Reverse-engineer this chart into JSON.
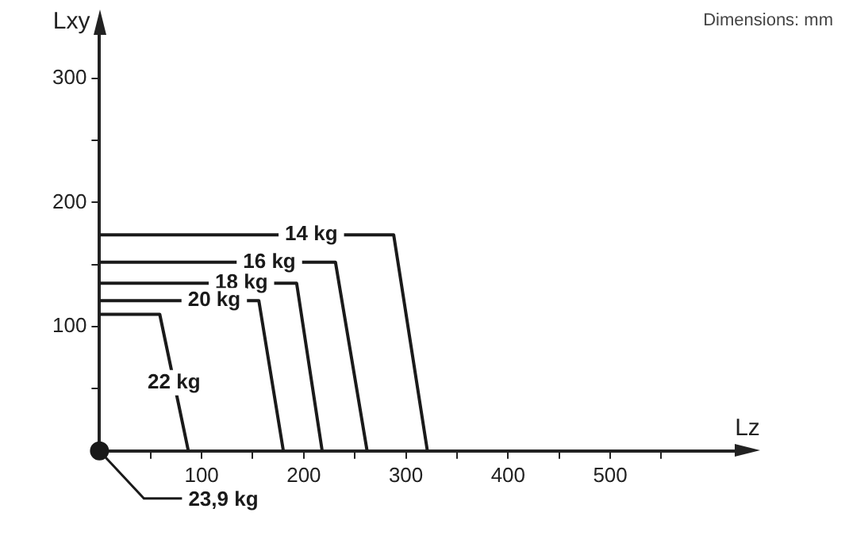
{
  "chart_data": {
    "type": "line",
    "xlabel": "Lz",
    "ylabel": "Lxy",
    "annotations": [
      "Dimensions: mm"
    ],
    "xlim": [
      0,
      625
    ],
    "ylim": [
      0,
      335
    ],
    "xticks": [
      {
        "value": 50,
        "label": null
      },
      100,
      {
        "value": 150,
        "label": null
      },
      200,
      {
        "value": 250,
        "label": null
      },
      300,
      {
        "value": 350,
        "label": null
      },
      400,
      {
        "value": 450,
        "label": null
      },
      500,
      {
        "value": 550,
        "label": null
      }
    ],
    "yticks": [
      {
        "value": 50,
        "label": null
      },
      100,
      {
        "value": 150,
        "label": null
      },
      200,
      {
        "value": 250,
        "label": null
      },
      300
    ],
    "grid": false,
    "legend": false,
    "marker": "none",
    "line_style": "solid",
    "series": [
      {
        "name": "14 kg",
        "color": "#1a1a1a",
        "x": [
          0,
          288,
          321
        ],
        "values": [
          174,
          174,
          0
        ]
      },
      {
        "name": "16 kg",
        "color": "#1a1a1a",
        "x": [
          0,
          231,
          262
        ],
        "values": [
          152,
          152,
          0
        ]
      },
      {
        "name": "18 kg",
        "color": "#1a1a1a",
        "x": [
          0,
          193,
          218
        ],
        "values": [
          135,
          135,
          0
        ]
      },
      {
        "name": "20 kg",
        "color": "#1a1a1a",
        "x": [
          0,
          156,
          180
        ],
        "values": [
          121,
          121,
          0
        ]
      },
      {
        "name": "22 kg",
        "color": "#1a1a1a",
        "x": [
          0,
          59,
          87
        ],
        "values": [
          110,
          110,
          0
        ]
      },
      {
        "name": "23,9 kg",
        "color": "#1a1a1a",
        "type": "scatter",
        "marker": "circle",
        "x": [
          0
        ],
        "values": [
          0
        ]
      }
    ]
  }
}
